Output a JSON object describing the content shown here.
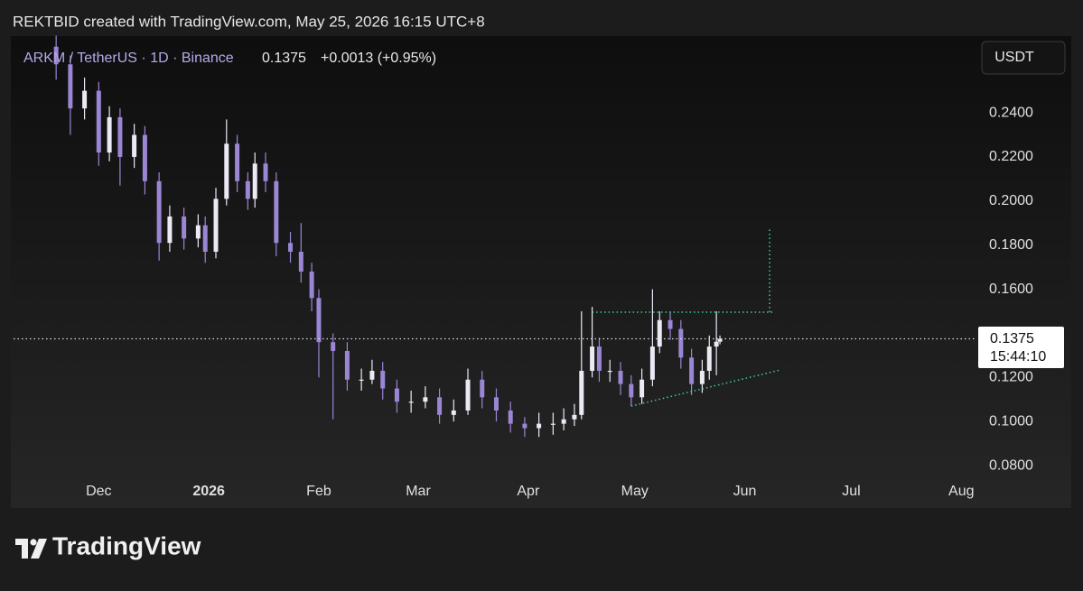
{
  "attribution": "REKTBID created with TradingView.com, May 25, 2026 16:15 UTC+8",
  "chart_data": {
    "type": "candlestick",
    "symbol": "ARKM / TetherUS · 1D · Binance",
    "last_price": 0.1375,
    "change": "+0.0013 (+0.95%)",
    "countdown": "15:44:10",
    "currency": "USDT",
    "up_color": "#ece9f5",
    "down_color": "#9a86d4",
    "xlim": [
      -24,
      247
    ],
    "xticks": [
      {
        "value": 0,
        "label": "Dec"
      },
      {
        "value": 31,
        "label": "2026"
      },
      {
        "value": 62,
        "label": "Feb"
      },
      {
        "value": 90,
        "label": "Mar"
      },
      {
        "value": 121,
        "label": "Apr"
      },
      {
        "value": 151,
        "label": "May"
      },
      {
        "value": 182,
        "label": "Jun"
      },
      {
        "value": 212,
        "label": "Jul"
      },
      {
        "value": 243,
        "label": "Aug"
      }
    ],
    "ylim": [
      0.0612,
      0.2748
    ],
    "yticks": [
      {
        "value": 0.08,
        "label": "0.0800"
      },
      {
        "value": 0.1,
        "label": "0.1000"
      },
      {
        "value": 0.12,
        "label": "0.1200"
      },
      {
        "value": 0.16,
        "label": "0.1600"
      },
      {
        "value": 0.18,
        "label": "0.1800"
      },
      {
        "value": 0.2,
        "label": "0.2000"
      },
      {
        "value": 0.22,
        "label": "0.2200"
      },
      {
        "value": 0.24,
        "label": "0.2400"
      }
    ],
    "x": [
      -12,
      -8,
      -4,
      0,
      3,
      6,
      10,
      13,
      17,
      20,
      24,
      28,
      30,
      33,
      36,
      39,
      42,
      44,
      47,
      50,
      54,
      57,
      60,
      62,
      66,
      70,
      74,
      77,
      80,
      84,
      88,
      92,
      96,
      100,
      104,
      108,
      112,
      116,
      120,
      124,
      128,
      131,
      134,
      136,
      139,
      141,
      144,
      147,
      150,
      153,
      156,
      158,
      161,
      164,
      167,
      170,
      172,
      174,
      175
    ],
    "open": [
      0.27,
      0.262,
      0.242,
      0.25,
      0.222,
      0.238,
      0.22,
      0.23,
      0.209,
      0.181,
      0.193,
      0.183,
      0.189,
      0.177,
      0.201,
      0.226,
      0.209,
      0.201,
      0.217,
      0.209,
      0.181,
      0.177,
      0.168,
      0.156,
      0.136,
      0.132,
      0.119,
      0.119,
      0.123,
      0.115,
      0.109,
      0.109,
      0.111,
      0.103,
      0.105,
      0.119,
      0.111,
      0.105,
      0.099,
      0.097,
      0.099,
      0.099,
      0.101,
      0.103,
      0.123,
      0.134,
      0.123,
      0.123,
      0.117,
      0.111,
      0.119,
      0.134,
      0.146,
      0.142,
      0.129,
      0.117,
      0.123,
      0.134,
      0.1362
    ],
    "high": [
      0.275,
      0.266,
      0.256,
      0.254,
      0.243,
      0.242,
      0.235,
      0.234,
      0.213,
      0.198,
      0.197,
      0.194,
      0.193,
      0.206,
      0.237,
      0.23,
      0.213,
      0.222,
      0.222,
      0.213,
      0.186,
      0.19,
      0.172,
      0.16,
      0.14,
      0.136,
      0.124,
      0.128,
      0.127,
      0.119,
      0.114,
      0.116,
      0.115,
      0.11,
      0.124,
      0.123,
      0.115,
      0.109,
      0.102,
      0.104,
      0.104,
      0.106,
      0.108,
      0.15,
      0.152,
      0.138,
      0.128,
      0.127,
      0.121,
      0.124,
      0.16,
      0.15,
      0.15,
      0.146,
      0.133,
      0.128,
      0.139,
      0.15,
      0.139
    ],
    "low": [
      0.255,
      0.23,
      0.237,
      0.216,
      0.218,
      0.207,
      0.215,
      0.203,
      0.173,
      0.177,
      0.178,
      0.179,
      0.172,
      0.174,
      0.198,
      0.204,
      0.196,
      0.197,
      0.204,
      0.175,
      0.172,
      0.163,
      0.15,
      0.12,
      0.101,
      0.114,
      0.114,
      0.117,
      0.11,
      0.104,
      0.104,
      0.106,
      0.099,
      0.1,
      0.103,
      0.106,
      0.1,
      0.095,
      0.093,
      0.093,
      0.094,
      0.096,
      0.098,
      0.101,
      0.12,
      0.118,
      0.118,
      0.112,
      0.107,
      0.108,
      0.116,
      0.131,
      0.137,
      0.124,
      0.112,
      0.113,
      0.119,
      0.121,
      0.135
    ],
    "close": [
      0.262,
      0.242,
      0.25,
      0.222,
      0.238,
      0.22,
      0.23,
      0.209,
      0.181,
      0.193,
      0.183,
      0.189,
      0.177,
      0.201,
      0.226,
      0.209,
      0.201,
      0.217,
      0.209,
      0.181,
      0.177,
      0.168,
      0.156,
      0.136,
      0.132,
      0.119,
      0.119,
      0.123,
      0.115,
      0.109,
      0.109,
      0.111,
      0.103,
      0.105,
      0.119,
      0.111,
      0.105,
      0.099,
      0.097,
      0.099,
      0.099,
      0.101,
      0.103,
      0.123,
      0.134,
      0.123,
      0.123,
      0.117,
      0.111,
      0.119,
      0.134,
      0.146,
      0.142,
      0.129,
      0.117,
      0.123,
      0.134,
      0.1362,
      0.1375
    ],
    "trendline_color": "#3fcf8e",
    "trendlines": [
      {
        "x": [
          139,
          190
        ],
        "y": [
          0.1496,
          0.1496
        ]
      },
      {
        "x": [
          189,
          189
        ],
        "y": [
          0.1496,
          0.1876
        ]
      },
      {
        "x": [
          150,
          192
        ],
        "y": [
          0.107,
          0.1234
        ]
      }
    ]
  },
  "footer": {
    "logo_text": "TradingView"
  }
}
